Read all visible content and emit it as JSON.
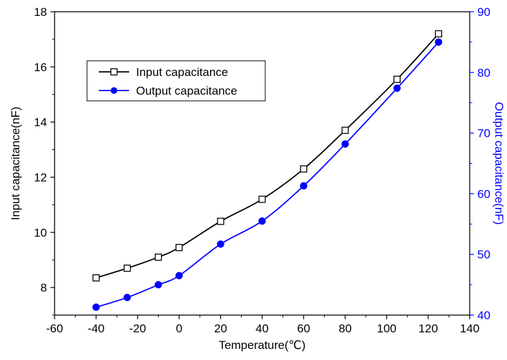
{
  "chart_data": {
    "type": "line",
    "xlabel": "Temperature(℃)",
    "ylabel_left": "Input capacitance(nF)",
    "ylabel_right": "Output capacitance(nF)",
    "xlim": [
      -60,
      140
    ],
    "ylim_left": [
      7,
      18
    ],
    "ylim_right": [
      40,
      90
    ],
    "x_ticks": [
      -60,
      -40,
      -20,
      0,
      20,
      40,
      60,
      80,
      100,
      120,
      140
    ],
    "y_left_ticks": [
      8,
      10,
      12,
      14,
      16,
      18
    ],
    "y_right_ticks": [
      40,
      50,
      60,
      70,
      80,
      90
    ],
    "grid": false,
    "legend_placement": "top-left",
    "series": [
      {
        "name": "Input capacitance",
        "axis": "left",
        "color": "#000000",
        "marker": "open-square",
        "x": [
          -40,
          -25,
          -10,
          0,
          20,
          40,
          60,
          80,
          105,
          125
        ],
        "y": [
          8.35,
          8.7,
          9.1,
          9.45,
          10.4,
          11.2,
          12.3,
          13.7,
          15.55,
          17.2
        ]
      },
      {
        "name": "Output capacitance",
        "axis": "right",
        "color": "#0000ff",
        "marker": "filled-circle",
        "x": [
          -40,
          -25,
          -10,
          0,
          20,
          40,
          60,
          80,
          105,
          125
        ],
        "y": [
          41.3,
          42.9,
          45.0,
          46.5,
          51.7,
          55.5,
          61.3,
          68.2,
          77.4,
          85.0
        ]
      }
    ]
  }
}
